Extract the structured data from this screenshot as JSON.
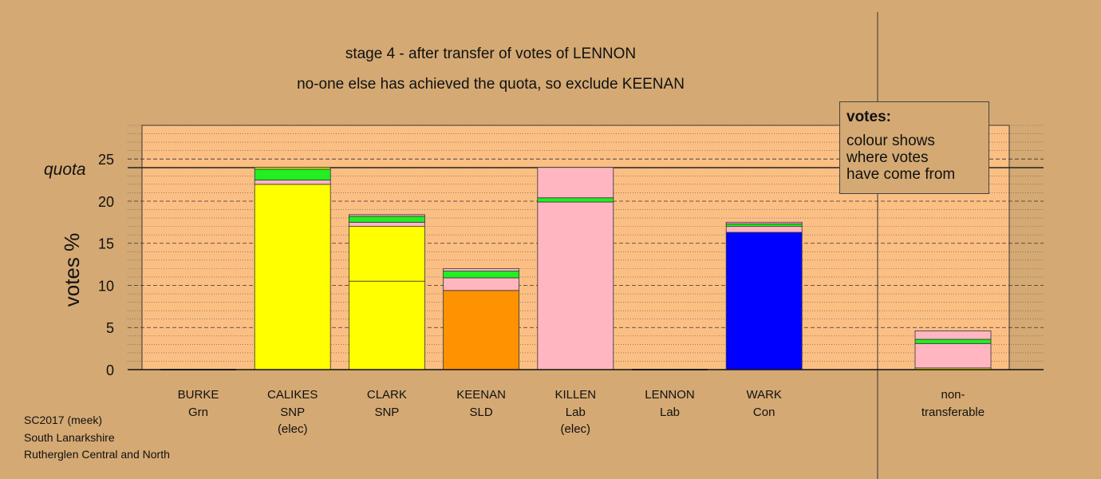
{
  "chart_data": {
    "type": "bar",
    "title": "stage 4 - after transfer of votes of LENNON",
    "subtitle": "no-one else has achieved the quota, so exclude KEENAN",
    "ylabel": "votes %",
    "quota_label": "quota",
    "quota": 24.0,
    "ylim": [
      0,
      29
    ],
    "yticks": [
      0,
      5,
      10,
      15,
      20,
      25
    ],
    "legend": {
      "title": "votes:",
      "lines": [
        "colour shows",
        "where votes",
        "have come from"
      ]
    },
    "candidates": [
      {
        "name": "BURKE",
        "party": "Grn",
        "note": "",
        "segments": []
      },
      {
        "name": "CALIKES",
        "party": "SNP",
        "note": "(elec)",
        "segments": [
          {
            "value": 22.0,
            "color": "#ffff00"
          },
          {
            "value": 0.5,
            "color": "#ffb6c1"
          },
          {
            "value": 1.3,
            "color": "#22ee22"
          },
          {
            "value": 0.2,
            "color": "#ffff00"
          }
        ]
      },
      {
        "name": "CLARK",
        "party": "SNP",
        "note": "",
        "segments": [
          {
            "value": 10.5,
            "color": "#ffff00"
          },
          {
            "value": 6.5,
            "color": "#ffff00"
          },
          {
            "value": 0.5,
            "color": "#ffb6c1"
          },
          {
            "value": 0.7,
            "color": "#22ee22"
          },
          {
            "value": 0.2,
            "color": "#ffb6c1"
          }
        ]
      },
      {
        "name": "KEENAN",
        "party": "SLD",
        "note": "",
        "segments": [
          {
            "value": 9.4,
            "color": "#ff9200"
          },
          {
            "value": 1.5,
            "color": "#ffb6c1"
          },
          {
            "value": 0.8,
            "color": "#22ee22"
          },
          {
            "value": 0.3,
            "color": "#ffb6c1"
          }
        ]
      },
      {
        "name": "KILLEN",
        "party": "Lab",
        "note": "(elec)",
        "segments": [
          {
            "value": 19.9,
            "color": "#ffb6c1"
          },
          {
            "value": 0.5,
            "color": "#22ee22"
          },
          {
            "value": 3.6,
            "color": "#ffb6c1"
          }
        ]
      },
      {
        "name": "LENNON",
        "party": "Lab",
        "note": "",
        "segments": []
      },
      {
        "name": "WARK",
        "party": "Con",
        "note": "",
        "segments": [
          {
            "value": 16.3,
            "color": "#0000ff"
          },
          {
            "value": 0.7,
            "color": "#ffb6c1"
          },
          {
            "value": 0.3,
            "color": "#22ee22"
          },
          {
            "value": 0.2,
            "color": "#ffb6c1"
          }
        ]
      }
    ],
    "nontransferable": {
      "label_line1": "non-",
      "label_line2": "transferable",
      "segments": [
        {
          "value": 0.2,
          "color": "#ffff00"
        },
        {
          "value": 2.9,
          "color": "#ffb6c1"
        },
        {
          "value": 0.5,
          "color": "#22ee22"
        },
        {
          "value": 1.0,
          "color": "#ffb6c1"
        }
      ]
    }
  },
  "footer": {
    "line1": "SC2017 (meek)",
    "line2": "South Lanarkshire",
    "line3": "Rutherglen Central and North"
  }
}
